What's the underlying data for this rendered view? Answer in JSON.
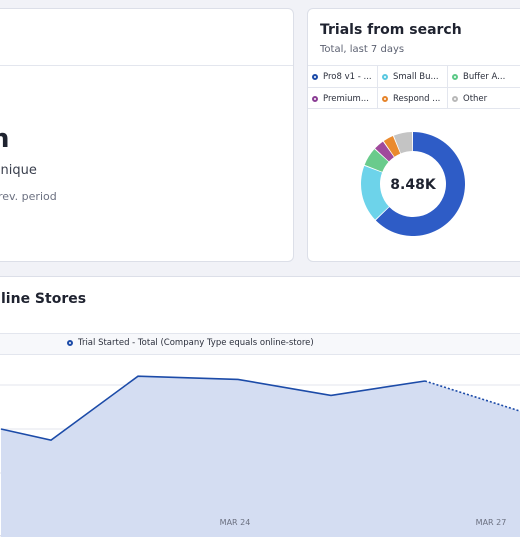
{
  "left_card": {
    "value_partial": "h",
    "metric_label": "Unique",
    "change_label": "prev. period"
  },
  "trials_card": {
    "title": "Trials from search",
    "subtitle": "Total, last 7 days",
    "total": "8.48K",
    "legend": [
      {
        "label": "Pro8 v1 - ...",
        "color": "#1c4ba8"
      },
      {
        "label": "Small Bu...",
        "color": "#5ac8e0"
      },
      {
        "label": "Buffer A...",
        "color": "#5cc987"
      },
      {
        "label": "Premium...",
        "color": "#8a3d94"
      },
      {
        "label": "Respond ...",
        "color": "#e6842a"
      },
      {
        "label": "Other",
        "color": "#b8b8b8"
      }
    ]
  },
  "stores_card": {
    "title_partial": "line Stores",
    "series_label": "Trial Started - Total (Company Type equals online-store)",
    "x_labels": [
      "MAR 24",
      "MAR 27"
    ]
  },
  "chart_data": [
    {
      "type": "pie",
      "title": "Trials from search",
      "subtitle": "Total, last 7 days",
      "total_label": "8.48K",
      "slices": [
        {
          "name": "Pro8 v1 - ...",
          "value": 63,
          "color": "#2e5cc6"
        },
        {
          "name": "Small Bu...",
          "value": 18,
          "color": "#6dd3ea"
        },
        {
          "name": "Buffer A...",
          "value": 6,
          "color": "#6acb8c"
        },
        {
          "name": "Premium...",
          "value": 3.5,
          "color": "#a04a9c"
        },
        {
          "name": "Respond ...",
          "value": 3.5,
          "color": "#ea8a2e"
        },
        {
          "name": "Other",
          "value": 6,
          "color": "#c4c4c4"
        }
      ]
    },
    {
      "type": "area",
      "series": [
        {
          "name": "Trial Started - Total (Company Type equals online-store)",
          "values": [
            55,
            48,
            88,
            86,
            76,
            85,
            66
          ],
          "incomplete_from_index": 5,
          "color": "#1c4ba8"
        }
      ],
      "x_labels": [
        "MAR 24",
        "MAR 27"
      ],
      "ylim": [
        0,
        100
      ],
      "grid": true
    }
  ]
}
